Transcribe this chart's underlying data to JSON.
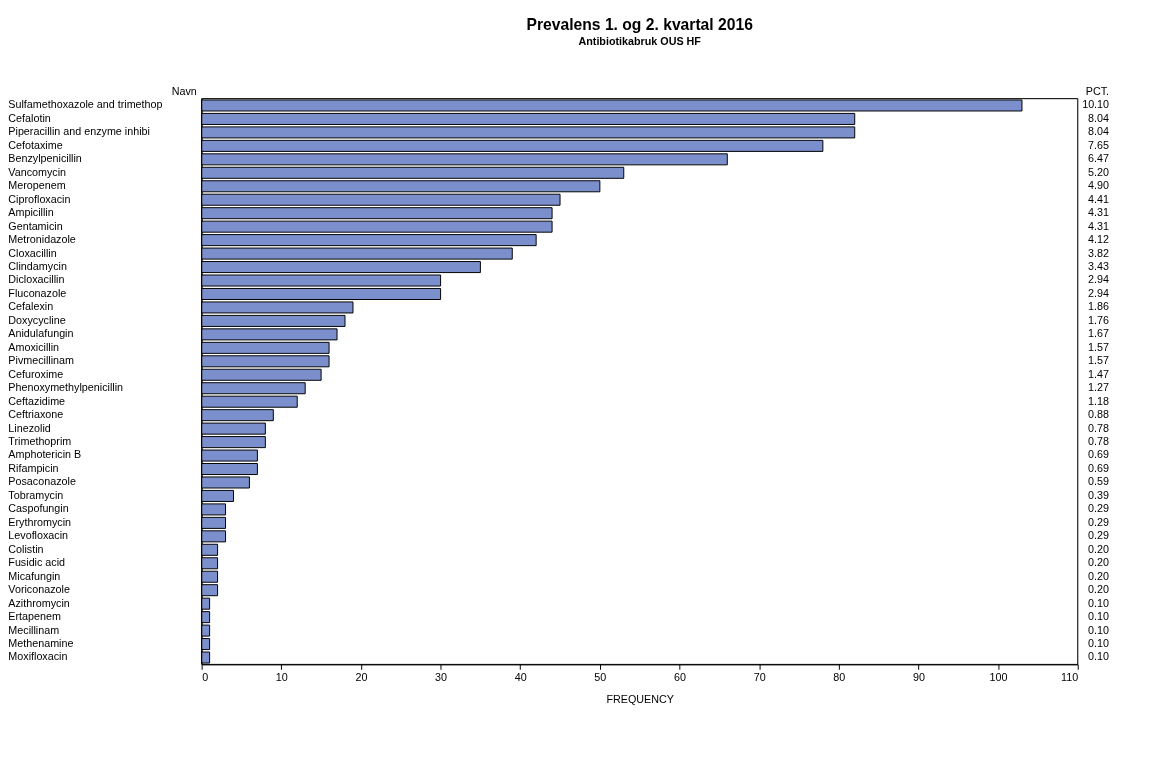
{
  "chart_data": {
    "type": "bar",
    "orientation": "horizontal",
    "title": "Prevalens 1. og 2. kvartal 2016",
    "subtitle": "Antibiotikabruk OUS HF",
    "xlabel": "FREQUENCY",
    "ylabel": "Navn",
    "y2label": "PCT.",
    "categories": [
      "Sulfamethoxazole and trimethop",
      "Cefalotin",
      "Piperacillin and enzyme inhibi",
      "Cefotaxime",
      "Benzylpenicillin",
      "Vancomycin",
      "Meropenem",
      "Ciprofloxacin",
      "Ampicillin",
      "Gentamicin",
      "Metronidazole",
      "Cloxacillin",
      "Clindamycin",
      "Dicloxacillin",
      "Fluconazole",
      "Cefalexin",
      "Doxycycline",
      "Anidulafungin",
      "Amoxicillin",
      "Pivmecillinam",
      "Cefuroxime",
      "Phenoxymethylpenicillin",
      "Ceftazidime",
      "Ceftriaxone",
      "Linezolid",
      "Trimethoprim",
      "Amphotericin B",
      "Rifampicin",
      "Posaconazole",
      "Tobramycin",
      "Caspofungin",
      "Erythromycin",
      "Levofloxacin",
      "Colistin",
      "Fusidic acid",
      "Micafungin",
      "Voriconazole",
      "Azithromycin",
      "Ertapenem",
      "Mecillinam",
      "Methenamine",
      "Moxifloxacin"
    ],
    "values": [
      103,
      82,
      82,
      78,
      66,
      53,
      50,
      45,
      44,
      44,
      42,
      39,
      35,
      30,
      30,
      19,
      18,
      17,
      16,
      16,
      15,
      13,
      12,
      9,
      8,
      8,
      7,
      7,
      6,
      4,
      3,
      3,
      3,
      2,
      2,
      2,
      2,
      1,
      1,
      1,
      1,
      1
    ],
    "annotations": [
      "10.10",
      "8.04",
      "8.04",
      "7.65",
      "6.47",
      "5.20",
      "4.90",
      "4.41",
      "4.31",
      "4.31",
      "4.12",
      "3.82",
      "3.43",
      "2.94",
      "2.94",
      "1.86",
      "1.76",
      "1.67",
      "1.57",
      "1.57",
      "1.47",
      "1.27",
      "1.18",
      "0.88",
      "0.78",
      "0.78",
      "0.69",
      "0.69",
      "0.59",
      "0.39",
      "0.29",
      "0.29",
      "0.29",
      "0.20",
      "0.20",
      "0.20",
      "0.20",
      "0.10",
      "0.10",
      "0.10",
      "0.10",
      "0.10"
    ],
    "color": "#7b8fcc",
    "xlim": [
      0,
      110
    ],
    "xticks": [
      0,
      10,
      20,
      30,
      40,
      50,
      60,
      70,
      80,
      90,
      100,
      110
    ]
  }
}
